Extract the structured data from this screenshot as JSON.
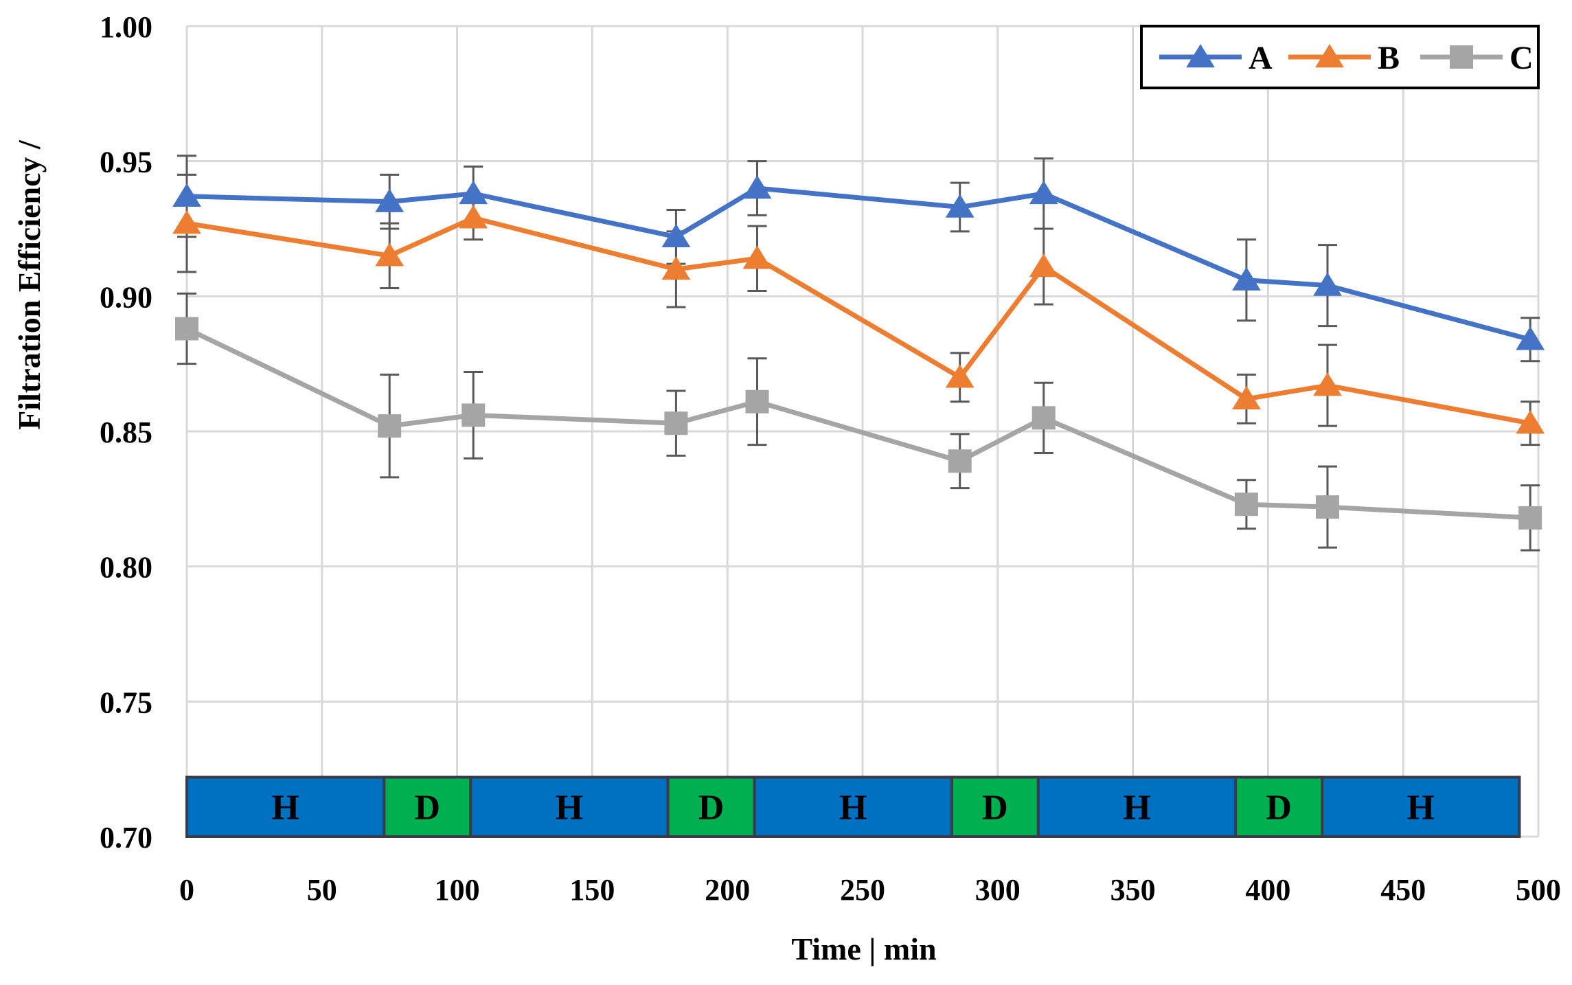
{
  "chart_data": {
    "type": "line",
    "title": "",
    "xlabel": "Time | min",
    "ylabel": "Filtration Efficiency /",
    "xlim": [
      0,
      500
    ],
    "ylim": [
      0.7,
      1.0
    ],
    "xticks": [
      0,
      50,
      100,
      150,
      200,
      250,
      300,
      350,
      400,
      450,
      500
    ],
    "xtick_labels": [
      "0",
      "50",
      "100",
      "150",
      "200",
      "250",
      "300",
      "350",
      "400",
      "450",
      "500"
    ],
    "yticks": [
      0.7,
      0.75,
      0.8,
      0.85,
      0.9,
      0.95,
      1.0
    ],
    "ytick_labels": [
      "0.70",
      "0.75",
      "0.80",
      "0.85",
      "0.90",
      "0.95",
      "1.00"
    ],
    "grid": true,
    "legend_position": "top-right",
    "series": [
      {
        "name": "A",
        "color": "#4472C4",
        "marker": "triangle",
        "x": [
          0,
          75,
          106,
          181,
          211,
          286,
          317,
          392,
          422,
          497
        ],
        "y": [
          0.937,
          0.935,
          0.938,
          0.922,
          0.94,
          0.933,
          0.938,
          0.906,
          0.904,
          0.884
        ],
        "err": [
          0.015,
          0.01,
          0.01,
          0.01,
          0.01,
          0.009,
          0.013,
          0.015,
          0.015,
          0.008
        ]
      },
      {
        "name": "B",
        "color": "#ED7D31",
        "marker": "triangle",
        "x": [
          0,
          75,
          106,
          181,
          211,
          286,
          317,
          392,
          422,
          497
        ],
        "y": [
          0.927,
          0.915,
          0.929,
          0.91,
          0.914,
          0.87,
          0.911,
          0.862,
          0.867,
          0.853
        ],
        "err": [
          0.018,
          0.012,
          0.008,
          0.014,
          0.012,
          0.009,
          0.014,
          0.009,
          0.015,
          0.008
        ]
      },
      {
        "name": "C",
        "color": "#A5A5A5",
        "marker": "square",
        "x": [
          0,
          75,
          106,
          181,
          211,
          286,
          317,
          392,
          422,
          497
        ],
        "y": [
          0.888,
          0.852,
          0.856,
          0.853,
          0.861,
          0.839,
          0.855,
          0.823,
          0.822,
          0.818
        ],
        "err": [
          0.013,
          0.019,
          0.016,
          0.012,
          0.016,
          0.01,
          0.013,
          0.009,
          0.015,
          0.012
        ]
      }
    ],
    "phases": [
      {
        "label": "H",
        "start": 0,
        "end": 73,
        "color": "#0070C0"
      },
      {
        "label": "D",
        "start": 73,
        "end": 105,
        "color": "#00B050"
      },
      {
        "label": "H",
        "start": 105,
        "end": 178,
        "color": "#0070C0"
      },
      {
        "label": "D",
        "start": 178,
        "end": 210,
        "color": "#00B050"
      },
      {
        "label": "H",
        "start": 210,
        "end": 283,
        "color": "#0070C0"
      },
      {
        "label": "D",
        "start": 283,
        "end": 315,
        "color": "#00B050"
      },
      {
        "label": "H",
        "start": 315,
        "end": 388,
        "color": "#0070C0"
      },
      {
        "label": "D",
        "start": 388,
        "end": 420,
        "color": "#00B050"
      },
      {
        "label": "H",
        "start": 420,
        "end": 493,
        "color": "#0070C0"
      }
    ],
    "phase_band_range": [
      0.7,
      0.722
    ]
  }
}
